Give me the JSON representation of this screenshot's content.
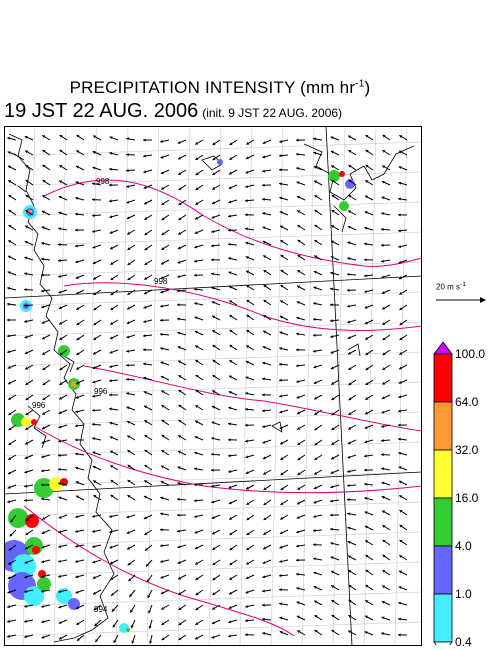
{
  "header": {
    "title_main": "PRECIPITATION INTENSITY (mm hr",
    "title_sup": "-1",
    "title_close": ")",
    "datetime": "19 JST 22 AUG. 2006",
    "init": "(init. 9 JST 22 AUG. 2006)"
  },
  "wind_ref": {
    "label": "20 m s",
    "sup": "-1"
  },
  "colorbar": {
    "levels": [
      "100.0",
      "64.0",
      "32.0",
      "16.0",
      "4.0",
      "1.0",
      "0.4"
    ],
    "colors": [
      "#cc00ff",
      "#ff0000",
      "#ff9933",
      "#ffff33",
      "#33cc33",
      "#6666ff",
      "#44eeff",
      "#ffffff"
    ]
  },
  "isobars": [
    "998",
    "998",
    "996",
    "996",
    "994"
  ],
  "colors": {
    "coast": "#000000",
    "grid": "#cccccc",
    "isobar": "#e0007a"
  }
}
